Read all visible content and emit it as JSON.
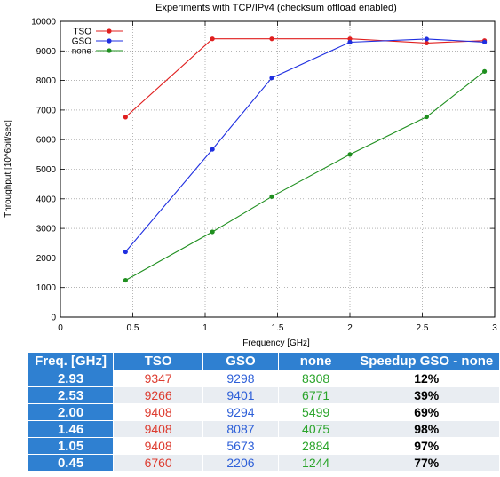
{
  "chart_data": {
    "type": "line",
    "title": "Experiments with TCP/IPv4 (checksum offload enabled)",
    "xlabel": "Frequency [GHz]",
    "ylabel": "Throughput [10^6bit/sec]",
    "xlim": [
      0,
      3
    ],
    "ylim": [
      0,
      10000
    ],
    "xticks": [
      0,
      0.5,
      1,
      1.5,
      2,
      2.5,
      3
    ],
    "yticks": [
      0,
      1000,
      2000,
      3000,
      4000,
      5000,
      6000,
      7000,
      8000,
      9000,
      10000
    ],
    "grid": true,
    "legend_position": "top-left",
    "x": [
      0.45,
      1.05,
      1.46,
      2.0,
      2.53,
      2.93
    ],
    "series": [
      {
        "name": "TSO",
        "color": "#e01f1f",
        "values": [
          6760,
          9408,
          9408,
          9408,
          9266,
          9347
        ]
      },
      {
        "name": "GSO",
        "color": "#1f2fe0",
        "values": [
          2206,
          5673,
          8087,
          9294,
          9401,
          9298
        ]
      },
      {
        "name": "none",
        "color": "#1f8f1f",
        "values": [
          1244,
          2884,
          4075,
          5499,
          6771,
          8308
        ]
      }
    ]
  },
  "table": {
    "headers": [
      "Freq. [GHz]",
      "TSO",
      "GSO",
      "none",
      "Speedup GSO - none"
    ],
    "rows": [
      {
        "freq": "2.93",
        "tso": "9347",
        "gso": "9298",
        "none": "8308",
        "speedup": "12%"
      },
      {
        "freq": "2.53",
        "tso": "9266",
        "gso": "9401",
        "none": "6771",
        "speedup": "39%"
      },
      {
        "freq": "2.00",
        "tso": "9408",
        "gso": "9294",
        "none": "5499",
        "speedup": "69%"
      },
      {
        "freq": "1.46",
        "tso": "9408",
        "gso": "8087",
        "none": "4075",
        "speedup": "98%"
      },
      {
        "freq": "1.05",
        "tso": "9408",
        "gso": "5673",
        "none": "2884",
        "speedup": "97%"
      },
      {
        "freq": "0.45",
        "tso": "6760",
        "gso": "2206",
        "none": "1244",
        "speedup": "77%"
      }
    ]
  }
}
